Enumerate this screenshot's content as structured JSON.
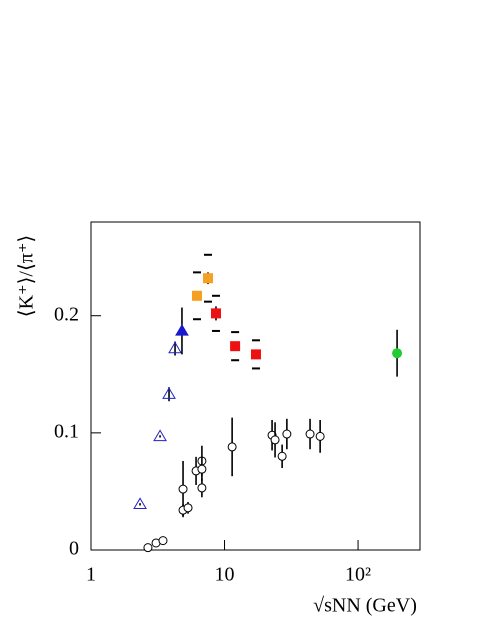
{
  "chart_data": {
    "type": "scatter",
    "x_label": "√sNN (GeV)",
    "y_label": "⟨K⁺⟩/⟨π⁺⟩",
    "xscale": "log",
    "xlim": [
      1,
      291
    ],
    "ylim": [
      0,
      0.28
    ],
    "xticks": [
      1,
      10,
      {
        "value": 100,
        "label": "10²"
      }
    ],
    "yticks": [
      0,
      0.1,
      0.2
    ],
    "series": [
      {
        "marker": "circle-open",
        "color": "#000000",
        "x": [
          2.67,
          3.07,
          3.46,
          4.89,
          4.89,
          5.33,
          6.12,
          6.77,
          6.77,
          6.77,
          11.4,
          22.7,
          23.9,
          27,
          29.3,
          43.7,
          52
        ],
        "values": [
          0.002,
          0.006,
          0.008,
          0.052,
          0.034,
          0.036,
          0.0675,
          0.076,
          0.069,
          0.053,
          0.088,
          0.098,
          0.094,
          0.08,
          0.099,
          0.099,
          0.097
        ],
        "errors": [
          0.001,
          0.001,
          0.001,
          0.024,
          0.005,
          0.005,
          0.012,
          0.013,
          0.01,
          0.008,
          0.025,
          0.013,
          0.015,
          0.01,
          0.013,
          0.013,
          0.014
        ]
      },
      {
        "marker": "triangle-open",
        "color": "#2222cc",
        "x": [
          2.33,
          3.29,
          3.84,
          4.26
        ],
        "values": [
          0.039,
          0.097,
          0.133,
          0.172
        ],
        "errors": [
          0.001,
          0.001,
          0.006,
          0.006
        ]
      },
      {
        "marker": "triangle",
        "color": "#1a1acc",
        "x": [
          4.8
        ],
        "values": [
          0.187
        ],
        "errors": [
          0.02
        ]
      },
      {
        "marker": "square",
        "color": "#f5a020",
        "x": [
          6.22,
          7.52
        ],
        "values": [
          0.217,
          0.232
        ],
        "errors": [
          0.004,
          0.005
        ],
        "sys_errors": [
          0.02,
          0.02
        ]
      },
      {
        "marker": "square",
        "color": "#ee1111",
        "x": [
          8.63,
          12.0,
          17.2
        ],
        "values": [
          0.202,
          0.174,
          0.167
        ],
        "errors": [
          0.006,
          0.004,
          0.004
        ],
        "sys_errors": [
          0.015,
          0.012,
          0.012
        ]
      },
      {
        "marker": "circle",
        "color": "#22cc33",
        "x": [
          196
        ],
        "values": [
          0.168
        ],
        "errors": [
          0.02
        ]
      }
    ]
  }
}
